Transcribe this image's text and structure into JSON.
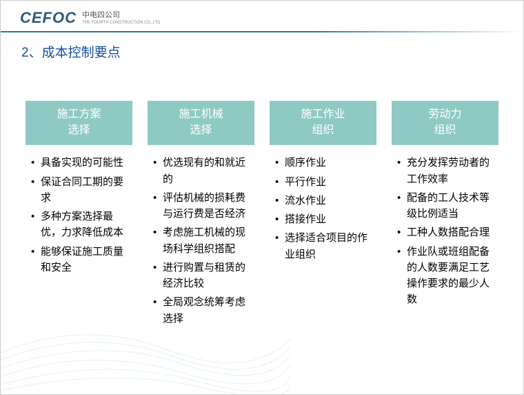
{
  "header": {
    "logo_main": "CEFOC",
    "logo_cn": "中电四公司",
    "logo_sub": "THE FOURTH CONSTRUCTION CO.,LTD"
  },
  "title": "2、成本控制要点",
  "columns": [
    {
      "header_line1": "施工方案",
      "header_line2": "选择",
      "items": [
        "具备实现的可能性",
        "保证合同工期的要求",
        "多种方案选择最优，力求降低成本",
        "能够保证施工质量和安全"
      ]
    },
    {
      "header_line1": "施工机械",
      "header_line2": "选择",
      "items": [
        "优选现有的和就近的",
        "评估机械的损耗费与运行费是否经济",
        "考虑施工机械的现场科学组织搭配",
        "进行购置与租赁的经济比较",
        "全局观念统筹考虑选择"
      ]
    },
    {
      "header_line1": "施工作业",
      "header_line2": "组织",
      "items": [
        "顺序作业",
        "平行作业",
        "流水作业",
        "搭接作业",
        "选择适合项目的作业组织"
      ]
    },
    {
      "header_line1": "劳动力",
      "header_line2": "组织",
      "items": [
        "充分发挥劳动者的工作效率",
        "配备的工人技术等级比例适当",
        "工种人数搭配合理",
        "作业队或班组配备的人数要满足工艺操作要求的最少人数"
      ]
    }
  ],
  "colors": {
    "title_color": "#1a4ea0",
    "header_bg": "#8fc9c4",
    "header_text": "#ffffff",
    "body_text": "#000000",
    "logo_color": "#2a5a7a"
  }
}
